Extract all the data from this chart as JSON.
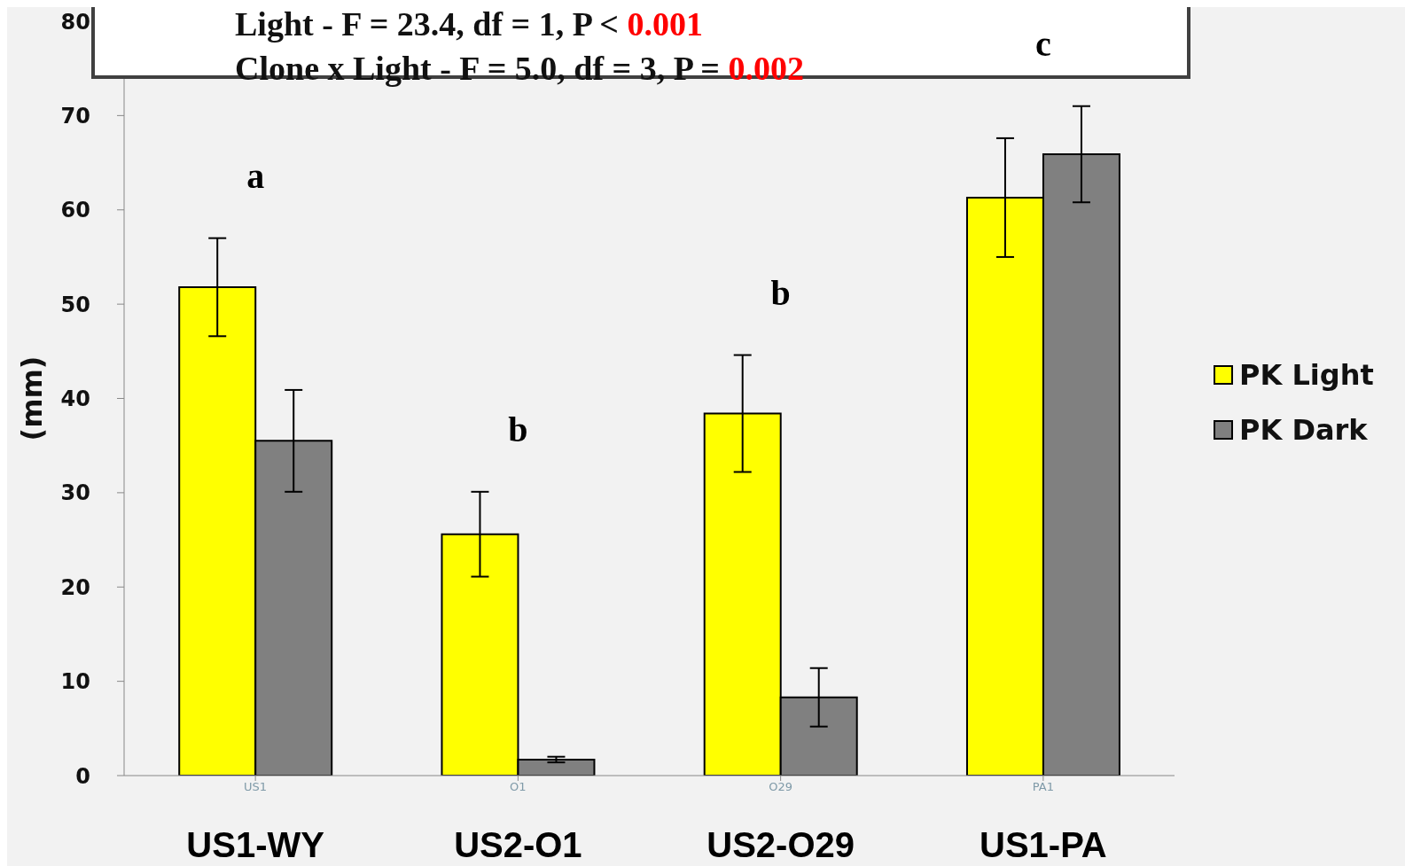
{
  "chart_data": {
    "type": "bar",
    "ylabel": "(mm)",
    "categories": [
      "US1",
      "O1",
      "O29",
      "PA1"
    ],
    "series": [
      {
        "name": "PK Light",
        "color": "#ffff00",
        "values": [
          51.8,
          25.6,
          38.4,
          61.3
        ],
        "errors": [
          5.2,
          4.5,
          6.2,
          6.3
        ]
      },
      {
        "name": "PK Dark",
        "color": "#808080",
        "values": [
          35.5,
          1.7,
          8.3,
          65.9
        ],
        "errors": [
          5.4,
          0.3,
          3.1,
          5.1
        ]
      }
    ],
    "ylim": [
      0,
      80
    ],
    "yticks": [
      0,
      10,
      20,
      30,
      40,
      50,
      60,
      70,
      80
    ],
    "grid": false,
    "legend": "right",
    "annotations": [
      "Light - F = 23.4, df = 1, P < 0.001",
      "Clone x Light - F = 5.0, df = 3, P = 0.002",
      "US1-WY",
      "US2-O1",
      "US2-O29",
      "US1-PA",
      "a",
      "b",
      "b",
      "c"
    ]
  }
}
